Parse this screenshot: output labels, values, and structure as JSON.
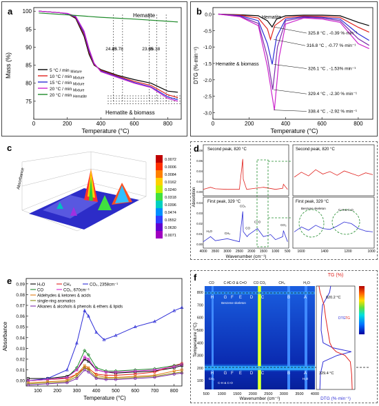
{
  "colors": {
    "black": "#000000",
    "red": "#e0201c",
    "blue": "#2b2bd6",
    "magenta": "#cc22cc",
    "green": "#1e8a2a",
    "orange": "#e07a10",
    "olive": "#8a8a10",
    "purple": "#7a2aa8"
  },
  "panel_a": {
    "label": "a",
    "title_note": "Hematite",
    "bottom_note": "Hematite & biomass",
    "vline_labels": [
      "24.43",
      "25.78",
      "23.65",
      "26.38"
    ],
    "xlabel": "Temperature (°C)",
    "ylabel": "Mass (%)",
    "xticks": [
      "0",
      "200",
      "400",
      "600",
      "800"
    ],
    "yticks": [
      "75",
      "80",
      "85",
      "90",
      "95",
      "100"
    ],
    "legend": [
      {
        "label": "5 °C / min",
        "sub": "Mixture",
        "color": "#000000"
      },
      {
        "label": "10 °C / min",
        "sub": "Mixture",
        "color": "#e0201c"
      },
      {
        "label": "15 °C / min",
        "sub": "Mixture",
        "color": "#2b2bd6"
      },
      {
        "label": "20 °C / min",
        "sub": "Mixture",
        "color": "#cc22cc"
      },
      {
        "label": "20 °C / min",
        "sub": "Hematite",
        "color": "#1e8a2a"
      }
    ]
  },
  "panel_b": {
    "label": "b",
    "note_hematite": "Hematite",
    "note_mix": "Hematite & biomass",
    "peaks": [
      "325.8 °C , -0.39 %·min⁻¹",
      "316.8 °C , -0.77 %·min⁻¹",
      "326.1 °C , -1.53% min⁻¹",
      "329.4 °C , -2.30 % min⁻¹",
      "338.4 °C , -2.92 % min⁻¹"
    ],
    "xlabel": "Temperature (°C)",
    "ylabel": "DTG (%·min⁻¹)",
    "xticks": [
      "0",
      "200",
      "400",
      "600",
      "800"
    ],
    "yticks": [
      "0.0",
      "-0.5",
      "-1.0",
      "-1.5",
      "-2.0",
      "-2.5",
      "-3.0"
    ]
  },
  "panel_c": {
    "label": "c",
    "zlabel": "Absorbance",
    "colorbar": [
      "0.0072",
      "0.0006",
      "0.0084",
      "0.0162",
      "0.0240",
      "0.0318",
      "0.0396",
      "0.0474",
      "0.0552",
      "0.0630",
      "0.0071"
    ]
  },
  "panel_d": {
    "label": "d",
    "top_title": "Second peak, 820 °C",
    "bottom_title": "First peak, 329 °C",
    "top_right_title": "Second peak, 820 °C",
    "bottom_right_title": "First peak, 329 °C",
    "ylabel": "Absorbtion",
    "xlabel": "Wavenumber (cm⁻¹)",
    "xticks": [
      "4000",
      "3500",
      "3000",
      "2500",
      "2000",
      "1500",
      "1000",
      "500"
    ],
    "xticks_right": [
      "1600",
      "1400",
      "1200",
      "1000"
    ],
    "top_yticks": [
      "0.08",
      "0.06",
      "0.04",
      "0.02",
      "0.00"
    ],
    "bottom_yticks": [
      "0.04",
      "0.03",
      "0.02",
      "0.01",
      "0.00"
    ],
    "annotations": [
      "H₂O",
      "CH₄",
      "CO₂",
      "CO",
      "C=O",
      "CO₂"
    ],
    "right_annotations": [
      "Benzene skeleton",
      "C-H & C-O"
    ]
  },
  "panel_e": {
    "label": "e",
    "xlabel": "Temperature (°C)",
    "ylabel": "Absorbance",
    "xticks": [
      "100",
      "200",
      "300",
      "400",
      "500",
      "600",
      "700",
      "800"
    ],
    "yticks": [
      "0.00",
      "0.01",
      "0.02",
      "0.03",
      "0.04",
      "0.05",
      "0.06",
      "0.07",
      "0.08",
      "0.09"
    ],
    "legend": [
      {
        "label": "H₂O",
        "color": "#000000"
      },
      {
        "label": "CH₄",
        "color": "#e0201c"
      },
      {
        "label": "CO₂, 2358cm⁻¹",
        "color": "#2b2bd6"
      },
      {
        "label": "CO",
        "color": "#1e8a2a"
      },
      {
        "label": "CO₂, 670cm⁻¹",
        "color": "#cc22cc"
      },
      {
        "label": "Aldehydes & ketones & acids",
        "color": "#e07a10"
      },
      {
        "label": "single-ring aromatics",
        "color": "#8a8a10"
      },
      {
        "label": "Alkanes & alcohols & phenols & ethers & lipids",
        "color": "#7a2aa8"
      }
    ]
  },
  "panel_f": {
    "label": "f",
    "ylabel": "Temperature (°C)",
    "xlabel": "Wavenumber (cm⁻¹)",
    "tg_label": "TG (%)",
    "dtg_label": "DTG (%·min⁻¹)",
    "top_bands": [
      "CO",
      "C-H",
      "C-O & C=O",
      "CO CO₂",
      "CH₄",
      "H₂O"
    ],
    "band_letters": [
      "H",
      "G",
      "F",
      "E",
      "D",
      "C",
      "B",
      "A"
    ],
    "annotation_high": "820.2 °C",
    "annotation_low": "329.4 °C",
    "xticks": [
      "500",
      "1000",
      "1500",
      "2000",
      "2500",
      "3000",
      "3500",
      "4000"
    ],
    "yticks": [
      "100",
      "200",
      "300",
      "400",
      "500",
      "600",
      "700",
      "800"
    ],
    "curve_legend": [
      "DTG",
      "TG"
    ],
    "bottom_band_labels": [
      "H₂O",
      "CO₂",
      "C-H & C-O",
      "Benzene skeleton"
    ]
  },
  "chart_data": [
    {
      "type": "line",
      "title": "",
      "xlabel": "Temperature (°C)",
      "ylabel": "Mass (%)",
      "xlim": [
        0,
        880
      ],
      "ylim": [
        70,
        101
      ],
      "series": [
        {
          "name": "5 °C / min Mixture",
          "x": [
            30,
            150,
            200,
            250,
            300,
            330,
            360,
            400,
            500,
            600,
            700,
            800,
            860
          ],
          "y": [
            100,
            99.6,
            99.3,
            98.0,
            93.0,
            88.0,
            85.0,
            83.8,
            82.2,
            81.0,
            80.0,
            77.8,
            77.5
          ]
        },
        {
          "name": "10 °C / min Mixture",
          "x": [
            30,
            150,
            200,
            250,
            300,
            330,
            360,
            400,
            500,
            600,
            700,
            800,
            860
          ],
          "y": [
            100,
            99.6,
            99.3,
            98.2,
            93.6,
            88.6,
            85.2,
            83.6,
            82.0,
            80.5,
            79.4,
            76.8,
            76.0
          ]
        },
        {
          "name": "15 °C / min Mixture",
          "x": [
            30,
            150,
            200,
            250,
            300,
            330,
            360,
            400,
            500,
            600,
            700,
            800,
            860
          ],
          "y": [
            100,
            99.6,
            99.3,
            98.4,
            94.0,
            89.0,
            85.4,
            83.4,
            81.8,
            80.2,
            79.0,
            76.2,
            75.4
          ]
        },
        {
          "name": "20 °C / min Mixture",
          "x": [
            30,
            150,
            200,
            250,
            300,
            330,
            360,
            400,
            500,
            600,
            700,
            800,
            860
          ],
          "y": [
            100,
            99.6,
            99.4,
            98.6,
            94.5,
            89.5,
            85.6,
            83.2,
            81.6,
            80.0,
            78.8,
            75.8,
            75.0
          ]
        },
        {
          "name": "20 °C / min Hematite",
          "x": [
            30,
            200,
            400,
            600,
            800,
            860
          ],
          "y": [
            99.5,
            99.0,
            98.3,
            97.8,
            97.2,
            97.0
          ]
        }
      ]
    },
    {
      "type": "line",
      "title": "",
      "xlabel": "Temperature (°C)",
      "ylabel": "DTG (%·min⁻¹)",
      "xlim": [
        0,
        880
      ],
      "ylim": [
        -3.2,
        0.2
      ],
      "series": [
        {
          "name": "Hematite",
          "x": [
            30,
            150,
            250,
            300,
            325.8,
            350,
            400,
            500,
            600,
            700,
            800,
            860
          ],
          "y": [
            0,
            -0.02,
            -0.05,
            -0.2,
            -0.39,
            -0.15,
            -0.05,
            -0.03,
            -0.03,
            -0.05,
            -0.25,
            -0.35
          ]
        },
        {
          "name": "5 °C / min",
          "x": [
            30,
            150,
            250,
            300,
            316.8,
            340,
            400,
            500,
            600,
            700,
            800,
            860
          ],
          "y": [
            0,
            -0.03,
            -0.12,
            -0.45,
            -0.77,
            -0.35,
            -0.1,
            -0.06,
            -0.07,
            -0.1,
            -0.4,
            -0.55
          ]
        },
        {
          "name": "10 °C / min",
          "x": [
            30,
            150,
            250,
            300,
            326.1,
            350,
            400,
            500,
            600,
            700,
            800,
            860
          ],
          "y": [
            0,
            -0.05,
            -0.2,
            -0.9,
            -1.53,
            -0.7,
            -0.15,
            -0.08,
            -0.1,
            -0.15,
            -0.6,
            -0.8
          ]
        },
        {
          "name": "15 °C / min",
          "x": [
            30,
            150,
            250,
            300,
            329.4,
            355,
            400,
            500,
            600,
            700,
            800,
            860
          ],
          "y": [
            0,
            -0.07,
            -0.28,
            -1.3,
            -2.3,
            -1.0,
            -0.2,
            -0.1,
            -0.12,
            -0.2,
            -0.75,
            -0.95
          ]
        },
        {
          "name": "20 °C / min",
          "x": [
            30,
            150,
            250,
            300,
            338.4,
            365,
            400,
            500,
            600,
            700,
            800,
            860
          ],
          "y": [
            0,
            -0.08,
            -0.35,
            -1.6,
            -2.92,
            -1.3,
            -0.3,
            -0.12,
            -0.15,
            -0.25,
            -0.9,
            -1.05
          ]
        }
      ]
    },
    {
      "type": "line",
      "title": "",
      "xlabel": "Temperature (°C)",
      "ylabel": "Absorbance",
      "xlim": [
        40,
        840
      ],
      "ylim": [
        -0.005,
        0.095
      ],
      "series": [
        {
          "name": "H₂O",
          "x": [
            50,
            150,
            250,
            300,
            340,
            360,
            400,
            450,
            500,
            600,
            700,
            800,
            840
          ],
          "y": [
            0.002,
            0.002,
            0.004,
            0.01,
            0.02,
            0.018,
            0.01,
            0.008,
            0.007,
            0.008,
            0.009,
            0.012,
            0.014
          ]
        },
        {
          "name": "CH₄",
          "x": [
            50,
            150,
            250,
            300,
            340,
            360,
            400,
            450,
            500,
            600,
            700,
            800,
            840
          ],
          "y": [
            0.0,
            0.001,
            0.002,
            0.006,
            0.012,
            0.011,
            0.006,
            0.005,
            0.005,
            0.006,
            0.008,
            0.014,
            0.016
          ]
        },
        {
          "name": "CO₂, 2358cm⁻¹",
          "x": [
            50,
            150,
            250,
            300,
            340,
            360,
            400,
            440,
            500,
            600,
            700,
            800,
            840
          ],
          "y": [
            0.0,
            0.002,
            0.01,
            0.035,
            0.065,
            0.06,
            0.045,
            0.038,
            0.042,
            0.05,
            0.055,
            0.065,
            0.068
          ]
        },
        {
          "name": "CO",
          "x": [
            50,
            150,
            250,
            300,
            340,
            360,
            400,
            450,
            500,
            600,
            700,
            800,
            840
          ],
          "y": [
            0.0,
            0.001,
            0.003,
            0.012,
            0.028,
            0.024,
            0.012,
            0.009,
            0.009,
            0.01,
            0.011,
            0.014,
            0.015
          ]
        },
        {
          "name": "CO₂, 670cm⁻¹",
          "x": [
            50,
            150,
            250,
            300,
            340,
            360,
            400,
            450,
            500,
            600,
            700,
            800,
            840
          ],
          "y": [
            0.0,
            0.001,
            0.003,
            0.01,
            0.022,
            0.02,
            0.01,
            0.008,
            0.008,
            0.009,
            0.01,
            0.013,
            0.015
          ]
        },
        {
          "name": "Aldehydes & ketones & acids",
          "x": [
            50,
            150,
            250,
            300,
            340,
            360,
            400,
            450,
            500,
            600,
            700,
            800,
            840
          ],
          "y": [
            -0.002,
            -0.001,
            0.0,
            0.006,
            0.014,
            0.012,
            0.005,
            0.003,
            0.003,
            0.004,
            0.005,
            0.009,
            0.01
          ]
        },
        {
          "name": "single-ring aromatics",
          "x": [
            50,
            150,
            250,
            300,
            340,
            360,
            400,
            450,
            500,
            600,
            700,
            800,
            840
          ],
          "y": [
            -0.003,
            -0.002,
            -0.001,
            0.004,
            0.012,
            0.01,
            0.003,
            0.002,
            0.002,
            0.003,
            0.004,
            0.007,
            0.008
          ]
        },
        {
          "name": "Alkanes & alcohols & phenols & ethers & lipids",
          "x": [
            50,
            150,
            250,
            300,
            340,
            360,
            400,
            450,
            500,
            600,
            700,
            800,
            840
          ],
          "y": [
            -0.004,
            -0.003,
            -0.002,
            0.002,
            0.01,
            0.008,
            0.002,
            0.001,
            0.001,
            0.002,
            0.003,
            0.006,
            0.007
          ]
        }
      ]
    },
    {
      "type": "line",
      "title": "",
      "xlabel": "Wavenumber (cm⁻¹)",
      "ylabel": "Absorbtion",
      "xlim": [
        4000,
        450
      ],
      "ylim": [
        0,
        0.09
      ],
      "series": [
        {
          "name": "Second peak, 820 °C",
          "x": [
            4000,
            3700,
            3500,
            3000,
            2500,
            2360,
            2340,
            2200,
            2000,
            1700,
            1500,
            1000,
            700,
            670,
            500
          ],
          "y": [
            0.01,
            0.014,
            0.011,
            0.01,
            0.01,
            0.07,
            0.03,
            0.01,
            0.011,
            0.013,
            0.014,
            0.01,
            0.012,
            0.02,
            0.01
          ]
        },
        {
          "name": "First peak, 329 °C",
          "x": [
            4000,
            3700,
            3500,
            3000,
            2500,
            2360,
            2340,
            2180,
            2110,
            1750,
            1500,
            1200,
            1000,
            700,
            670,
            500
          ],
          "y": [
            0.005,
            0.01,
            0.006,
            0.008,
            0.005,
            0.035,
            0.015,
            0.01,
            0.012,
            0.018,
            0.01,
            0.012,
            0.007,
            0.01,
            0.016,
            0.005
          ]
        }
      ]
    }
  ]
}
